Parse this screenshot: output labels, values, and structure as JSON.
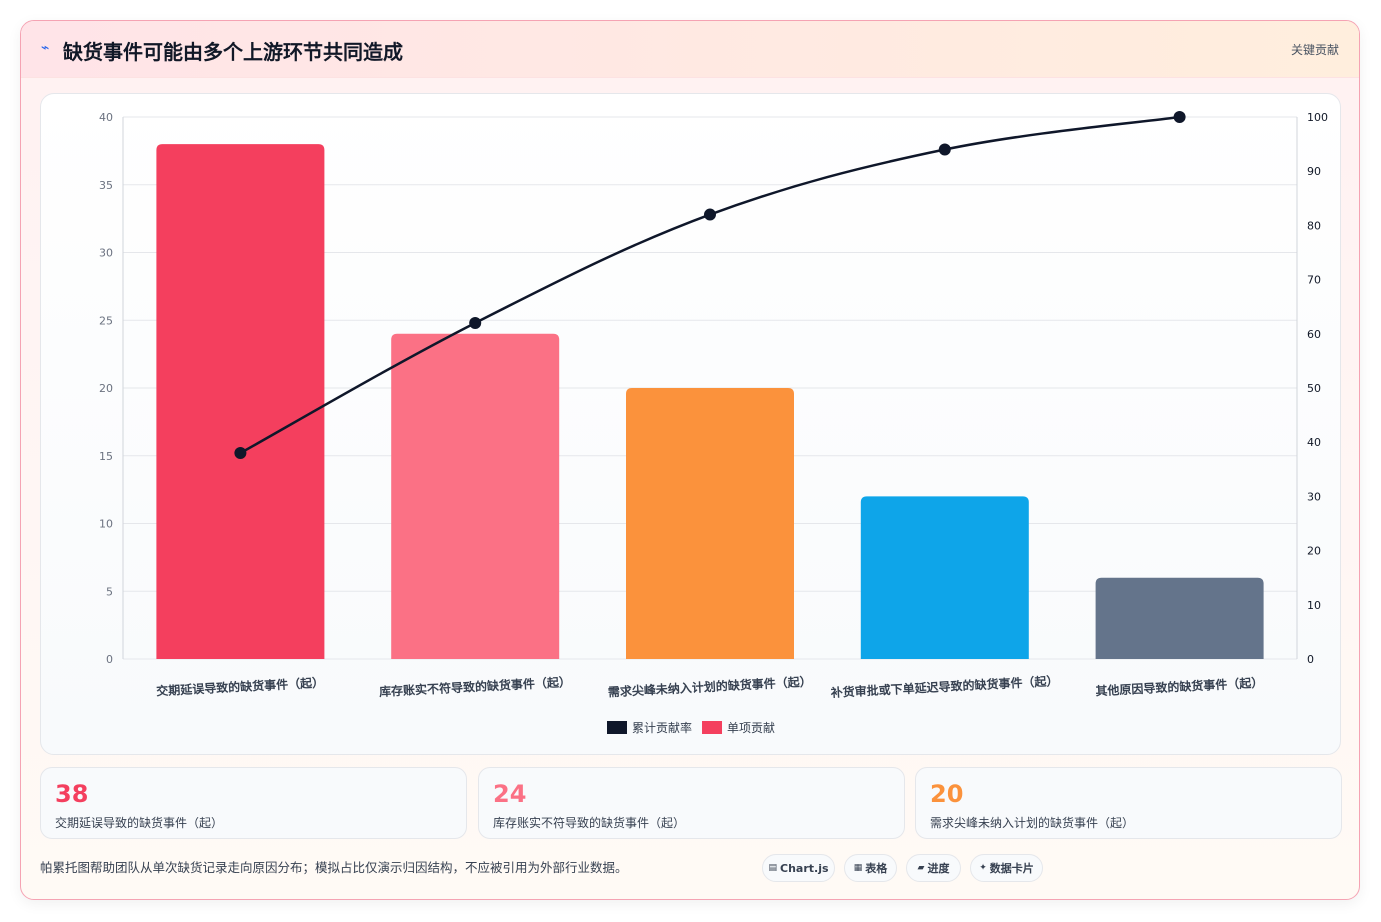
{
  "header": {
    "icon": "⌁",
    "title": "缺货事件可能由多个上游环节共同造成",
    "tag": "关键贡献"
  },
  "chart_data": {
    "type": "bar",
    "categories": [
      "交期延误导致的缺货事件（起）",
      "库存账实不符导致的缺货事件（起）",
      "需求尖峰未纳入计划的缺货事件（起）",
      "补货审批或下单延迟导致的缺货事件（起）",
      "其他原因导致的缺货事件（起）"
    ],
    "series": [
      {
        "name": "单项贡献",
        "type": "bar",
        "axis": "left",
        "values": [
          38,
          24,
          20,
          12,
          6
        ],
        "colors": [
          "#f43f5e",
          "#fb7185",
          "#fb923c",
          "#0ea5e9",
          "#64748b"
        ]
      },
      {
        "name": "累计贡献率",
        "type": "line",
        "axis": "right",
        "values": [
          38,
          62,
          82,
          94,
          100
        ],
        "color": "#0f172a"
      }
    ],
    "ylim_left": [
      0,
      40
    ],
    "yticks_left": [
      "0",
      "5",
      "10",
      "15",
      "20",
      "25",
      "30",
      "35",
      "40"
    ],
    "ylim_right": [
      0,
      100
    ],
    "yticks_right": [
      "0",
      "10",
      "20",
      "30",
      "40",
      "50",
      "60",
      "70",
      "80",
      "90",
      "100"
    ],
    "grid": true,
    "legend_position": "bottom"
  },
  "stats": [
    {
      "value": "38",
      "label": "交期延误导致的缺货事件（起）",
      "color": "#f43f5e"
    },
    {
      "value": "24",
      "label": "库存账实不符导致的缺货事件（起）",
      "color": "#fb7185"
    },
    {
      "value": "20",
      "label": "需求尖峰未纳入计划的缺货事件（起）",
      "color": "#fb923c"
    }
  ],
  "footnote": "帕累托图帮助团队从单次缺货记录走向原因分布；模拟占比仅演示归因结构，不应被引用为外部行业数据。",
  "chips": [
    {
      "icon": "▤",
      "icon_name": "chart-icon",
      "label": "Chart.js"
    },
    {
      "icon": "▦",
      "icon_name": "table-icon",
      "label": "表格"
    },
    {
      "icon": "▰",
      "icon_name": "progress-icon",
      "label": "进度"
    },
    {
      "icon": "✦",
      "icon_name": "sparkle-icon",
      "label": "数据卡片"
    }
  ]
}
